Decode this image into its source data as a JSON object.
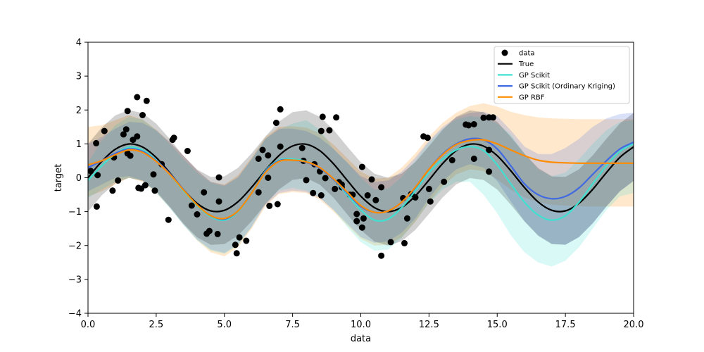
{
  "chart_data": {
    "type": "line",
    "title": "",
    "xlabel": "data",
    "ylabel": "target",
    "xlim": [
      0,
      20
    ],
    "ylim": [
      -4,
      4
    ],
    "xticks": [
      0,
      2.5,
      5,
      7.5,
      10,
      12.5,
      15,
      17.5,
      20
    ],
    "xtick_labels": [
      "0.0",
      "2.5",
      "5.0",
      "7.5",
      "10.0",
      "12.5",
      "15.0",
      "17.5",
      "20.0"
    ],
    "yticks": [
      -4,
      -3,
      -2,
      -1,
      0,
      1,
      2,
      3,
      4
    ],
    "ytick_labels": [
      "−4",
      "−3",
      "−2",
      "−1",
      "0",
      "1",
      "2",
      "3",
      "4"
    ],
    "grid": false,
    "legend_position": "top-right",
    "colors": {
      "data": "#000000",
      "true": "#000000",
      "gp_scikit": "#40e0d0",
      "gp_ok": "#4169e1",
      "gp_rbf": "#ff8c00"
    },
    "scatter": {
      "name": "data",
      "points": [
        [
          0.1,
          0.2
        ],
        [
          0.3,
          1.02
        ],
        [
          0.35,
          0.08
        ],
        [
          0.32,
          -0.85
        ],
        [
          0.6,
          1.38
        ],
        [
          0.9,
          -0.38
        ],
        [
          0.95,
          0.6
        ],
        [
          1.1,
          -0.08
        ],
        [
          1.3,
          1.28
        ],
        [
          1.4,
          1.43
        ],
        [
          1.45,
          1.97
        ],
        [
          1.45,
          0.72
        ],
        [
          1.55,
          0.65
        ],
        [
          1.65,
          1.12
        ],
        [
          1.8,
          1.22
        ],
        [
          1.8,
          2.38
        ],
        [
          1.85,
          -0.3
        ],
        [
          1.95,
          -0.32
        ],
        [
          2.0,
          1.85
        ],
        [
          2.1,
          -0.22
        ],
        [
          2.15,
          2.27
        ],
        [
          2.4,
          0.1
        ],
        [
          2.45,
          -0.38
        ],
        [
          2.7,
          0.4
        ],
        [
          2.95,
          -1.24
        ],
        [
          3.1,
          1.12
        ],
        [
          3.15,
          1.18
        ],
        [
          3.65,
          0.79
        ],
        [
          3.8,
          -0.82
        ],
        [
          4.0,
          -1.08
        ],
        [
          4.25,
          -0.43
        ],
        [
          4.35,
          -1.65
        ],
        [
          4.45,
          -1.57
        ],
        [
          4.75,
          -1.66
        ],
        [
          4.8,
          -0.7
        ],
        [
          4.8,
          0.01
        ],
        [
          5.4,
          -1.98
        ],
        [
          5.45,
          -2.23
        ],
        [
          5.55,
          -1.76
        ],
        [
          5.8,
          -1.86
        ],
        [
          6.25,
          0.56
        ],
        [
          6.25,
          -0.43
        ],
        [
          6.4,
          0.82
        ],
        [
          6.6,
          0.66
        ],
        [
          6.6,
          0.0
        ],
        [
          6.65,
          -0.83
        ],
        [
          6.9,
          1.62
        ],
        [
          6.95,
          -0.78
        ],
        [
          7.05,
          0.92
        ],
        [
          7.05,
          2.02
        ],
        [
          7.85,
          0.88
        ],
        [
          7.9,
          0.5
        ],
        [
          8.0,
          -0.07
        ],
        [
          8.25,
          -0.45
        ],
        [
          8.3,
          0.4
        ],
        [
          8.5,
          0.19
        ],
        [
          8.55,
          -0.52
        ],
        [
          8.55,
          1.38
        ],
        [
          8.6,
          1.8
        ],
        [
          8.7,
          -0.01
        ],
        [
          8.85,
          1.4
        ],
        [
          9.05,
          -0.33
        ],
        [
          9.1,
          1.78
        ],
        [
          9.2,
          -0.13
        ],
        [
          9.3,
          -0.28
        ],
        [
          9.3,
          -0.2
        ],
        [
          9.6,
          -0.5
        ],
        [
          9.7,
          -0.5
        ],
        [
          9.85,
          -1.07
        ],
        [
          9.85,
          -1.28
        ],
        [
          10.05,
          0.32
        ],
        [
          10.05,
          -1.47
        ],
        [
          10.1,
          -1.2
        ],
        [
          10.25,
          -0.52
        ],
        [
          10.4,
          -0.05
        ],
        [
          10.55,
          -0.66
        ],
        [
          10.75,
          -0.28
        ],
        [
          10.75,
          -2.3
        ],
        [
          11.1,
          -1.9
        ],
        [
          11.55,
          -0.6
        ],
        [
          11.6,
          -1.93
        ],
        [
          11.7,
          -1.2
        ],
        [
          11.85,
          -0.48
        ],
        [
          12.0,
          -0.58
        ],
        [
          12.3,
          1.22
        ],
        [
          12.45,
          1.18
        ],
        [
          12.5,
          -0.33
        ],
        [
          12.55,
          -0.7
        ],
        [
          13.05,
          -0.12
        ],
        [
          13.35,
          0.52
        ],
        [
          13.85,
          1.57
        ],
        [
          13.95,
          1.55
        ],
        [
          14.15,
          1.58
        ],
        [
          14.15,
          0.56
        ],
        [
          14.5,
          1.77
        ],
        [
          14.7,
          1.78
        ],
        [
          14.7,
          0.82
        ],
        [
          14.7,
          0.18
        ],
        [
          14.85,
          1.78
        ]
      ]
    },
    "series": [
      {
        "name": "True",
        "x": [
          0.0,
          0.5,
          1.0,
          1.5,
          2.0,
          2.5,
          3.0,
          3.5,
          4.0,
          4.5,
          5.0,
          5.5,
          6.0,
          6.5,
          7.0,
          7.5,
          8.0,
          8.5,
          9.0,
          9.5,
          10.0,
          10.5,
          11.0,
          11.5,
          12.0,
          12.5,
          13.0,
          13.5,
          14.0,
          14.5,
          15.0,
          15.5,
          16.0,
          16.5,
          17.0,
          17.5,
          18.0,
          18.5,
          19.0,
          19.5,
          20.0
        ],
        "y": [
          0.0,
          0.479,
          0.841,
          0.997,
          0.909,
          0.598,
          0.141,
          -0.351,
          -0.757,
          -0.978,
          -0.959,
          -0.706,
          -0.279,
          0.215,
          0.657,
          0.938,
          0.989,
          0.798,
          0.412,
          -0.075,
          -0.544,
          -0.88,
          -1.0,
          -0.875,
          -0.537,
          -0.066,
          0.42,
          0.804,
          0.991,
          0.935,
          0.65,
          0.206,
          -0.288,
          -0.712,
          -0.961,
          -0.976,
          -0.751,
          -0.342,
          0.15,
          0.605,
          0.913
        ],
        "lower": [
          -1.0,
          -0.521,
          -0.159,
          -0.003,
          -0.091,
          -0.402,
          -0.859,
          -1.351,
          -1.757,
          -1.978,
          -1.959,
          -1.706,
          -1.279,
          -0.785,
          -0.343,
          -0.062,
          -0.011,
          -0.202,
          -0.588,
          -1.075,
          -1.544,
          -1.88,
          -2.0,
          -1.875,
          -1.537,
          -1.066,
          -0.58,
          -0.196,
          -0.009,
          -0.065,
          -0.35,
          -0.794,
          -1.288,
          -1.712,
          -1.961,
          -1.976,
          -1.751,
          -1.342,
          -0.85,
          -0.395,
          -0.087
        ],
        "upper": [
          1.0,
          1.479,
          1.841,
          1.997,
          1.909,
          1.598,
          1.141,
          0.649,
          0.243,
          0.022,
          0.041,
          0.294,
          0.721,
          1.215,
          1.657,
          1.938,
          1.989,
          1.798,
          1.412,
          0.925,
          0.456,
          0.12,
          0.0,
          0.125,
          0.463,
          0.934,
          1.42,
          1.804,
          1.991,
          1.935,
          1.65,
          1.206,
          0.712,
          0.288,
          0.039,
          0.024,
          0.249,
          0.658,
          1.15,
          1.605,
          1.913
        ]
      },
      {
        "name": "GP Scikit",
        "x": [
          0.0,
          0.5,
          1.0,
          1.5,
          2.0,
          2.5,
          3.0,
          3.5,
          4.0,
          4.5,
          5.0,
          5.5,
          6.0,
          6.5,
          7.0,
          7.5,
          8.0,
          8.5,
          9.0,
          9.5,
          10.0,
          10.5,
          11.0,
          11.5,
          12.0,
          12.5,
          13.0,
          13.5,
          14.0,
          14.5,
          15.0,
          15.5,
          16.0,
          16.5,
          17.0,
          17.5,
          18.0,
          18.5,
          19.0,
          19.5,
          20.0
        ],
        "y": [
          -0.08,
          0.35,
          0.7,
          0.9,
          0.82,
          0.52,
          0.1,
          -0.38,
          -0.82,
          -1.15,
          -1.25,
          -1.0,
          -0.45,
          0.2,
          0.52,
          0.55,
          0.48,
          0.28,
          -0.05,
          -0.5,
          -0.95,
          -1.25,
          -1.22,
          -0.88,
          -0.38,
          0.15,
          0.55,
          0.82,
          0.92,
          0.8,
          0.38,
          -0.18,
          -0.72,
          -1.1,
          -1.25,
          -1.12,
          -0.72,
          -0.18,
          0.35,
          0.78,
          1.0
        ],
        "lower": [
          -0.6,
          -0.35,
          -0.12,
          0.0,
          -0.08,
          -0.45,
          -0.9,
          -1.4,
          -1.85,
          -2.15,
          -2.25,
          -2.0,
          -1.45,
          -0.75,
          -0.38,
          -0.3,
          -0.38,
          -0.58,
          -0.95,
          -1.45,
          -1.9,
          -2.15,
          -2.12,
          -1.78,
          -1.28,
          -0.75,
          -0.35,
          -0.12,
          -0.12,
          -0.5,
          -1.05,
          -1.7,
          -2.2,
          -2.5,
          -2.62,
          -2.45,
          -2.05,
          -1.5,
          -0.95,
          -0.55,
          -0.45
        ],
        "upper": [
          0.45,
          1.1,
          1.55,
          1.8,
          1.72,
          1.4,
          1.0,
          0.55,
          0.15,
          -0.15,
          -0.25,
          0.0,
          0.55,
          1.15,
          1.42,
          1.6,
          1.7,
          1.42,
          0.85,
          0.45,
          0.0,
          -0.35,
          -0.32,
          0.02,
          0.52,
          1.05,
          1.45,
          1.72,
          1.82,
          1.78,
          1.6,
          1.28,
          0.72,
          0.25,
          0.05,
          0.15,
          0.55,
          1.0,
          1.4,
          1.65,
          1.7
        ]
      },
      {
        "name": "GP Scikit (Ordinary Kriging)",
        "x": [
          0.0,
          0.5,
          1.0,
          1.5,
          2.0,
          2.5,
          3.0,
          3.5,
          4.0,
          4.5,
          5.0,
          5.5,
          6.0,
          6.5,
          7.0,
          7.5,
          8.0,
          8.5,
          9.0,
          9.5,
          10.0,
          10.5,
          11.0,
          11.5,
          12.0,
          12.5,
          13.0,
          13.5,
          14.0,
          14.5,
          15.0,
          15.5,
          16.0,
          16.5,
          17.0,
          17.5,
          18.0,
          18.5,
          19.0,
          19.5,
          20.0
        ],
        "y": [
          0.3,
          0.5,
          0.72,
          0.85,
          0.78,
          0.5,
          0.12,
          -0.35,
          -0.8,
          -1.12,
          -1.22,
          -0.98,
          -0.45,
          0.18,
          0.5,
          0.52,
          0.46,
          0.28,
          -0.05,
          -0.45,
          -0.85,
          -1.02,
          -0.98,
          -0.72,
          -0.3,
          0.25,
          0.7,
          1.0,
          1.15,
          1.12,
          0.85,
          0.35,
          -0.18,
          -0.5,
          -0.62,
          -0.55,
          -0.3,
          0.1,
          0.5,
          0.85,
          1.05
        ],
        "lower": [
          -0.4,
          -0.2,
          0.0,
          0.05,
          -0.08,
          -0.42,
          -0.88,
          -1.38,
          -1.82,
          -2.12,
          -2.22,
          -1.98,
          -1.45,
          -0.8,
          -0.45,
          -0.38,
          -0.42,
          -0.6,
          -0.95,
          -1.35,
          -1.75,
          -1.92,
          -1.88,
          -1.62,
          -1.2,
          -0.6,
          -0.1,
          0.25,
          0.4,
          0.3,
          -0.1,
          -0.7,
          -1.28,
          -1.7,
          -1.95,
          -1.98,
          -1.75,
          -1.35,
          -0.85,
          -0.4,
          -0.1
        ],
        "upper": [
          1.0,
          1.2,
          1.45,
          1.65,
          1.62,
          1.4,
          1.05,
          0.65,
          0.22,
          -0.12,
          -0.22,
          0.02,
          0.55,
          1.15,
          1.45,
          1.45,
          1.38,
          1.18,
          0.85,
          0.45,
          0.05,
          -0.12,
          -0.08,
          0.18,
          0.6,
          1.1,
          1.5,
          1.78,
          1.92,
          1.95,
          1.82,
          1.4,
          0.92,
          0.7,
          0.7,
          0.88,
          1.15,
          1.5,
          1.75,
          1.88,
          1.92
        ]
      },
      {
        "name": "GP RBF",
        "x": [
          0.0,
          0.5,
          1.0,
          1.5,
          2.0,
          2.5,
          3.0,
          3.5,
          4.0,
          4.5,
          5.0,
          5.5,
          6.0,
          6.5,
          7.0,
          7.5,
          8.0,
          8.5,
          9.0,
          9.5,
          10.0,
          10.5,
          11.0,
          11.5,
          12.0,
          12.5,
          13.0,
          13.5,
          14.0,
          14.5,
          15.0,
          15.5,
          16.0,
          16.5,
          17.0,
          17.5,
          18.0,
          18.5,
          19.0,
          19.5,
          20.0
        ],
        "y": [
          0.38,
          0.5,
          0.68,
          0.82,
          0.75,
          0.48,
          0.1,
          -0.36,
          -0.8,
          -1.12,
          -1.2,
          -0.98,
          -0.45,
          0.15,
          0.48,
          0.52,
          0.47,
          0.3,
          -0.03,
          -0.42,
          -0.82,
          -1.02,
          -0.98,
          -0.72,
          -0.28,
          0.25,
          0.68,
          0.98,
          1.1,
          1.12,
          1.0,
          0.82,
          0.65,
          0.52,
          0.46,
          0.44,
          0.43,
          0.43,
          0.43,
          0.43,
          0.43
        ],
        "lower": [
          -0.55,
          -0.4,
          -0.2,
          0.0,
          -0.12,
          -0.45,
          -0.88,
          -1.38,
          -1.85,
          -2.2,
          -2.32,
          -2.05,
          -1.5,
          -0.85,
          -0.48,
          -0.42,
          -0.45,
          -0.65,
          -1.0,
          -1.4,
          -1.8,
          -2.0,
          -1.98,
          -1.75,
          -1.3,
          -0.72,
          -0.25,
          0.1,
          0.25,
          0.2,
          -0.05,
          -0.35,
          -0.58,
          -0.72,
          -0.8,
          -0.82,
          -0.84,
          -0.85,
          -0.85,
          -0.85,
          -0.85
        ],
        "upper": [
          1.5,
          1.55,
          1.7,
          1.85,
          1.72,
          1.42,
          1.05,
          0.65,
          0.22,
          -0.12,
          -0.2,
          0.08,
          0.6,
          1.2,
          1.5,
          1.52,
          1.48,
          1.3,
          0.98,
          0.58,
          0.18,
          -0.02,
          0.0,
          0.3,
          0.72,
          1.22,
          1.62,
          1.92,
          2.12,
          2.2,
          2.1,
          1.95,
          1.85,
          1.78,
          1.75,
          1.74,
          1.73,
          1.73,
          1.73,
          1.73,
          1.73
        ]
      }
    ],
    "legend": [
      "data",
      "True",
      "GP Scikit",
      "GP Scikit (Ordinary Kriging)",
      "GP RBF"
    ]
  }
}
